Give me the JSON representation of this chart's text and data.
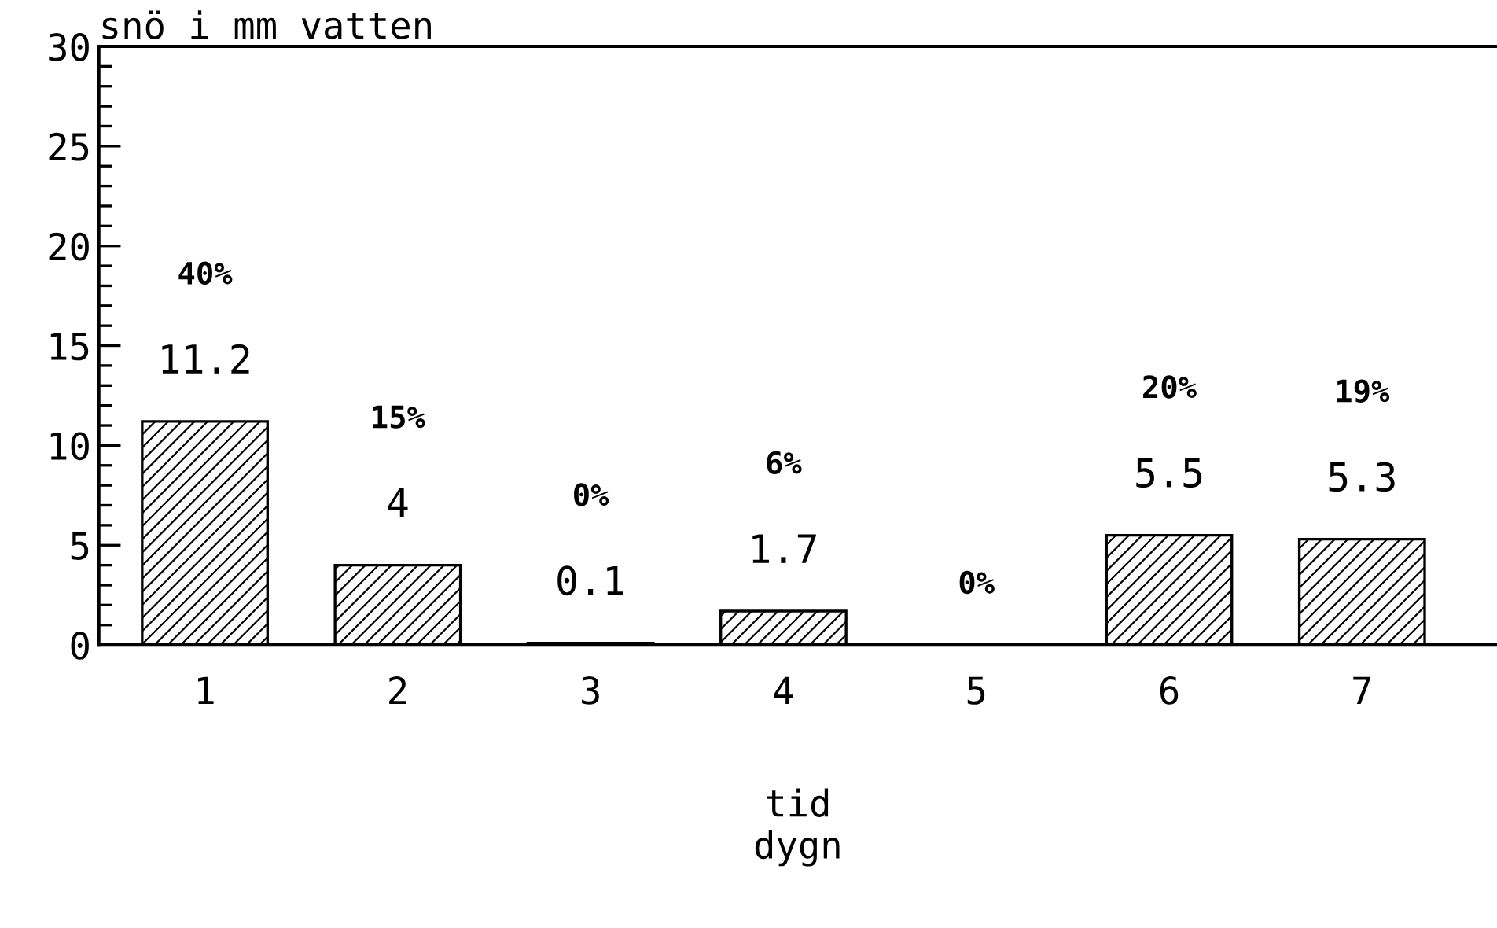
{
  "chart_data": {
    "type": "bar",
    "title": "snö i mm vatten",
    "xlabel": "tid\ndygn",
    "categories": [
      "1",
      "2",
      "3",
      "4",
      "5",
      "6",
      "7"
    ],
    "values": [
      11.2,
      4,
      0.1,
      1.7,
      0,
      5.5,
      5.3
    ],
    "value_labels": [
      "11.2",
      "4",
      "0.1",
      "1.7",
      null,
      "5.5",
      "5.3"
    ],
    "color": "#000000",
    "annotations": [
      "40%",
      "15%",
      "0%",
      "6%",
      "0%",
      "20%",
      "19%"
    ],
    "ylim": [
      0,
      30
    ],
    "yticks": [
      0,
      5,
      10,
      15,
      20,
      25,
      30
    ],
    "grid": false,
    "legend": false
  }
}
